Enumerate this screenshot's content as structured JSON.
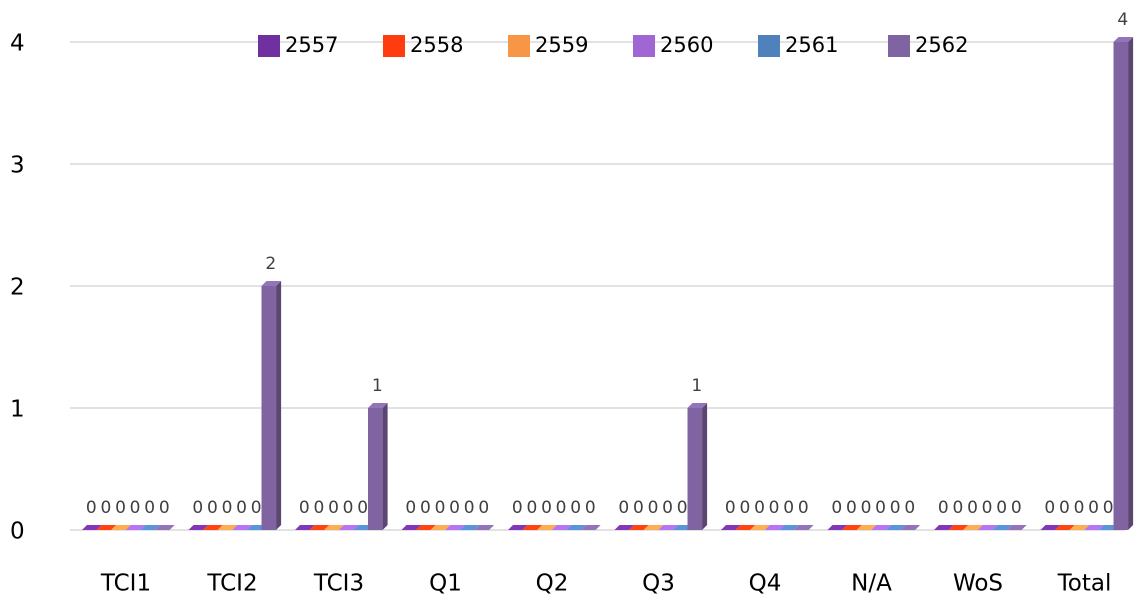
{
  "chart_data": {
    "type": "bar",
    "categories": [
      "TCI1",
      "TCI2",
      "TCI3",
      "Q1",
      "Q2",
      "Q3",
      "Q4",
      "N/A",
      "WoS",
      "Total"
    ],
    "series": [
      {
        "name": "2557",
        "color": "#7030a0",
        "values": [
          0,
          0,
          0,
          0,
          0,
          0,
          0,
          0,
          0,
          0
        ]
      },
      {
        "name": "2558",
        "color": "#ff3b10",
        "values": [
          0,
          0,
          0,
          0,
          0,
          0,
          0,
          0,
          0,
          0
        ]
      },
      {
        "name": "2559",
        "color": "#f79646",
        "values": [
          0,
          0,
          0,
          0,
          0,
          0,
          0,
          0,
          0,
          0
        ]
      },
      {
        "name": "2560",
        "color": "#a066d3",
        "values": [
          0,
          0,
          0,
          0,
          0,
          0,
          0,
          0,
          0,
          0
        ]
      },
      {
        "name": "2561",
        "color": "#4f81bd",
        "values": [
          0,
          0,
          0,
          0,
          0,
          0,
          0,
          0,
          0,
          0
        ]
      },
      {
        "name": "2562",
        "color": "#8064a2",
        "values": [
          0,
          2,
          1,
          0,
          0,
          1,
          0,
          0,
          0,
          4
        ]
      }
    ],
    "ylim": [
      0,
      4
    ],
    "yticks": [
      0,
      1,
      2,
      3,
      4
    ],
    "grid": true,
    "legend": "top"
  }
}
